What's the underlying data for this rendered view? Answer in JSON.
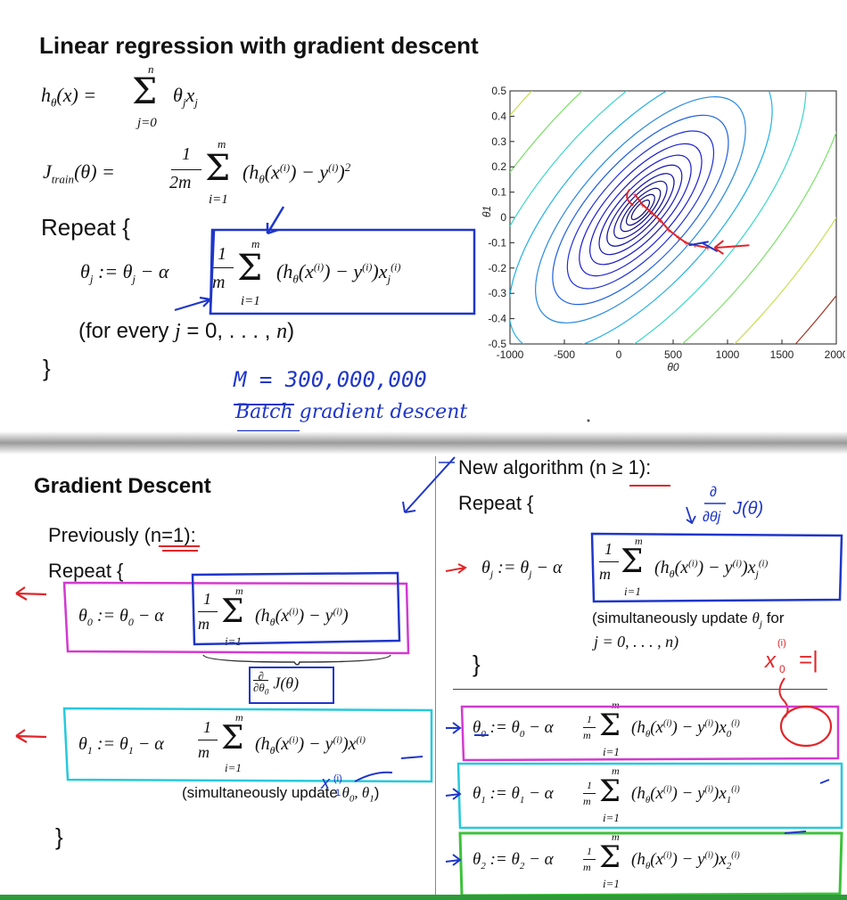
{
  "top": {
    "title": "Linear regression with gradient descent",
    "hypothesis": "hθ(x) = Σ θj xj   (j = 0 … n)",
    "cost": "Jtrain(θ) = (1/2m) Σ (hθ(x(i)) − y(i))²   (i = 1 … m)",
    "repeat": "Repeat {",
    "update": "θj := θj − α (1/m) Σ (hθ(x(i)) − y(i)) xj(i)",
    "forEvery": "(for every j = 0, …, n)",
    "close": "}",
    "note_m": "M = 300,000,000",
    "note_batch": "Batch gradient descent"
  },
  "plot": {
    "ylabel": "θ1",
    "xlabel": "θ0",
    "yticks": [
      "0.5",
      "0.4",
      "0.3",
      "0.2",
      "0.1",
      "0",
      "-0.1",
      "-0.2",
      "-0.3",
      "-0.4",
      "-0.5"
    ],
    "xticks": [
      "-1000",
      "-500",
      "0",
      "500",
      "1000",
      "1500",
      "2000"
    ]
  },
  "chart_data": {
    "type": "contour",
    "title": "",
    "xlabel": "θ0",
    "ylabel": "θ1",
    "xlim": [
      -1000,
      2000
    ],
    "ylim": [
      -0.5,
      0.5
    ],
    "descent_path": [
      {
        "x": 820,
        "y": -0.12
      },
      {
        "x": 700,
        "y": -0.11
      },
      {
        "x": 620,
        "y": -0.1
      },
      {
        "x": 550,
        "y": -0.08
      },
      {
        "x": 460,
        "y": -0.05
      },
      {
        "x": 380,
        "y": -0.01
      },
      {
        "x": 300,
        "y": 0.02
      },
      {
        "x": 220,
        "y": 0.05
      },
      {
        "x": 150,
        "y": 0.09
      }
    ]
  },
  "bottom": {
    "title": "Gradient Descent",
    "previously": "Previously (n=1):",
    "repeat": "Repeat {",
    "theta0": "θ0 := θ0 − α (1/m) Σ (hθ(x(i)) − y(i))",
    "deriv": "∂/∂θ0 J(θ)",
    "theta1": "θ1 := θ1 − α (1/m) Σ (hθ(x(i)) − y(i)) x(i)",
    "simul": "(simultaneously update θ0, θ1)",
    "close": "}",
    "newalg": "New algorithm (n ≥ 1):",
    "repeat2": "Repeat {",
    "thetaj": "θj := θj − α (1/m) Σ (hθ(x(i)) − y(i)) xj(i)",
    "simul2a": "(simultaneously update θj for",
    "simul2b": "j = 0, …, n)",
    "close2": "}",
    "new0": "θ0 := θ0 − α (1/m) Σ (hθ(x(i)) − y(i)) x0(i)",
    "new1": "θ1 := θ1 − α (1/m) Σ (hθ(x(i)) − y(i)) x1(i)",
    "new2": "θ2 := θ2 − α (1/m) Σ (hθ(x(i)) − y(i)) x2(i)",
    "note_deriv": "∂/∂θj J(θ)",
    "note_x0": "x0(i) = 1"
  },
  "colors": {
    "pen_blue": "#1f36c9",
    "pen_red": "#e0262a",
    "pen_magenta": "#d23ad0",
    "pen_cyan": "#26c9dc",
    "pen_green": "#3cc23a"
  }
}
